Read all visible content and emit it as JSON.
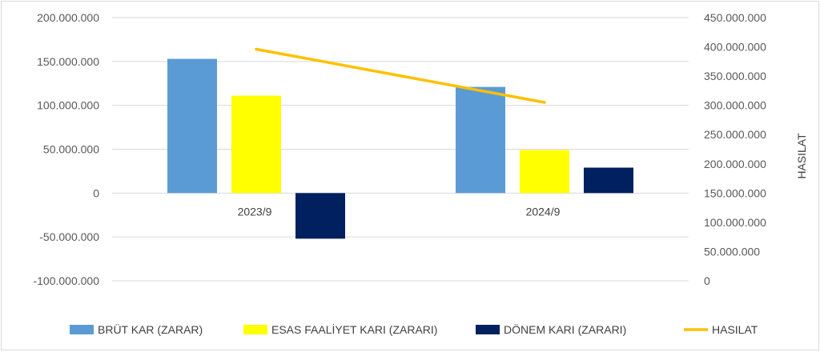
{
  "chart_data": {
    "type": "bar",
    "categories": [
      "2023/9",
      "2024/9"
    ],
    "series": [
      {
        "name": "BRÜT KAR (ZARAR)",
        "axis": "left",
        "kind": "bar",
        "color": "#5b9bd5",
        "values": [
          153000000,
          121000000
        ]
      },
      {
        "name": "ESAS FAALİYET KARI (ZARARI)",
        "axis": "left",
        "kind": "bar",
        "color": "#ffff00",
        "values": [
          111000000,
          49000000
        ]
      },
      {
        "name": "DÖNEM KARI (ZARARI)",
        "axis": "left",
        "kind": "bar",
        "color": "#002060",
        "values": [
          -52000000,
          29000000
        ]
      },
      {
        "name": "HASILAT",
        "axis": "right",
        "kind": "line",
        "color": "#ffc000",
        "values": [
          396000000,
          305000000
        ]
      }
    ],
    "y_left": {
      "ylim": [
        -100000000,
        200000000
      ],
      "ticks": [
        200000000,
        150000000,
        100000000,
        50000000,
        0,
        -50000000,
        -100000000
      ],
      "tick_labels": [
        "200.000.000",
        "150.000.000",
        "100.000.000",
        "50.000.000",
        "0",
        "-50.000.000",
        "-100.000.000"
      ]
    },
    "y_right": {
      "label": "HASILAT",
      "ylim": [
        0,
        450000000
      ],
      "ticks": [
        450000000,
        400000000,
        350000000,
        300000000,
        250000000,
        200000000,
        150000000,
        100000000,
        50000000,
        0
      ],
      "tick_labels": [
        "450.000.000",
        "400.000.000",
        "350.000.000",
        "300.000.000",
        "250.000.000",
        "200.000.000",
        "150.000.000",
        "100.000.000",
        "50.000.000",
        "0"
      ]
    },
    "legend": "bottom",
    "grid": true
  }
}
